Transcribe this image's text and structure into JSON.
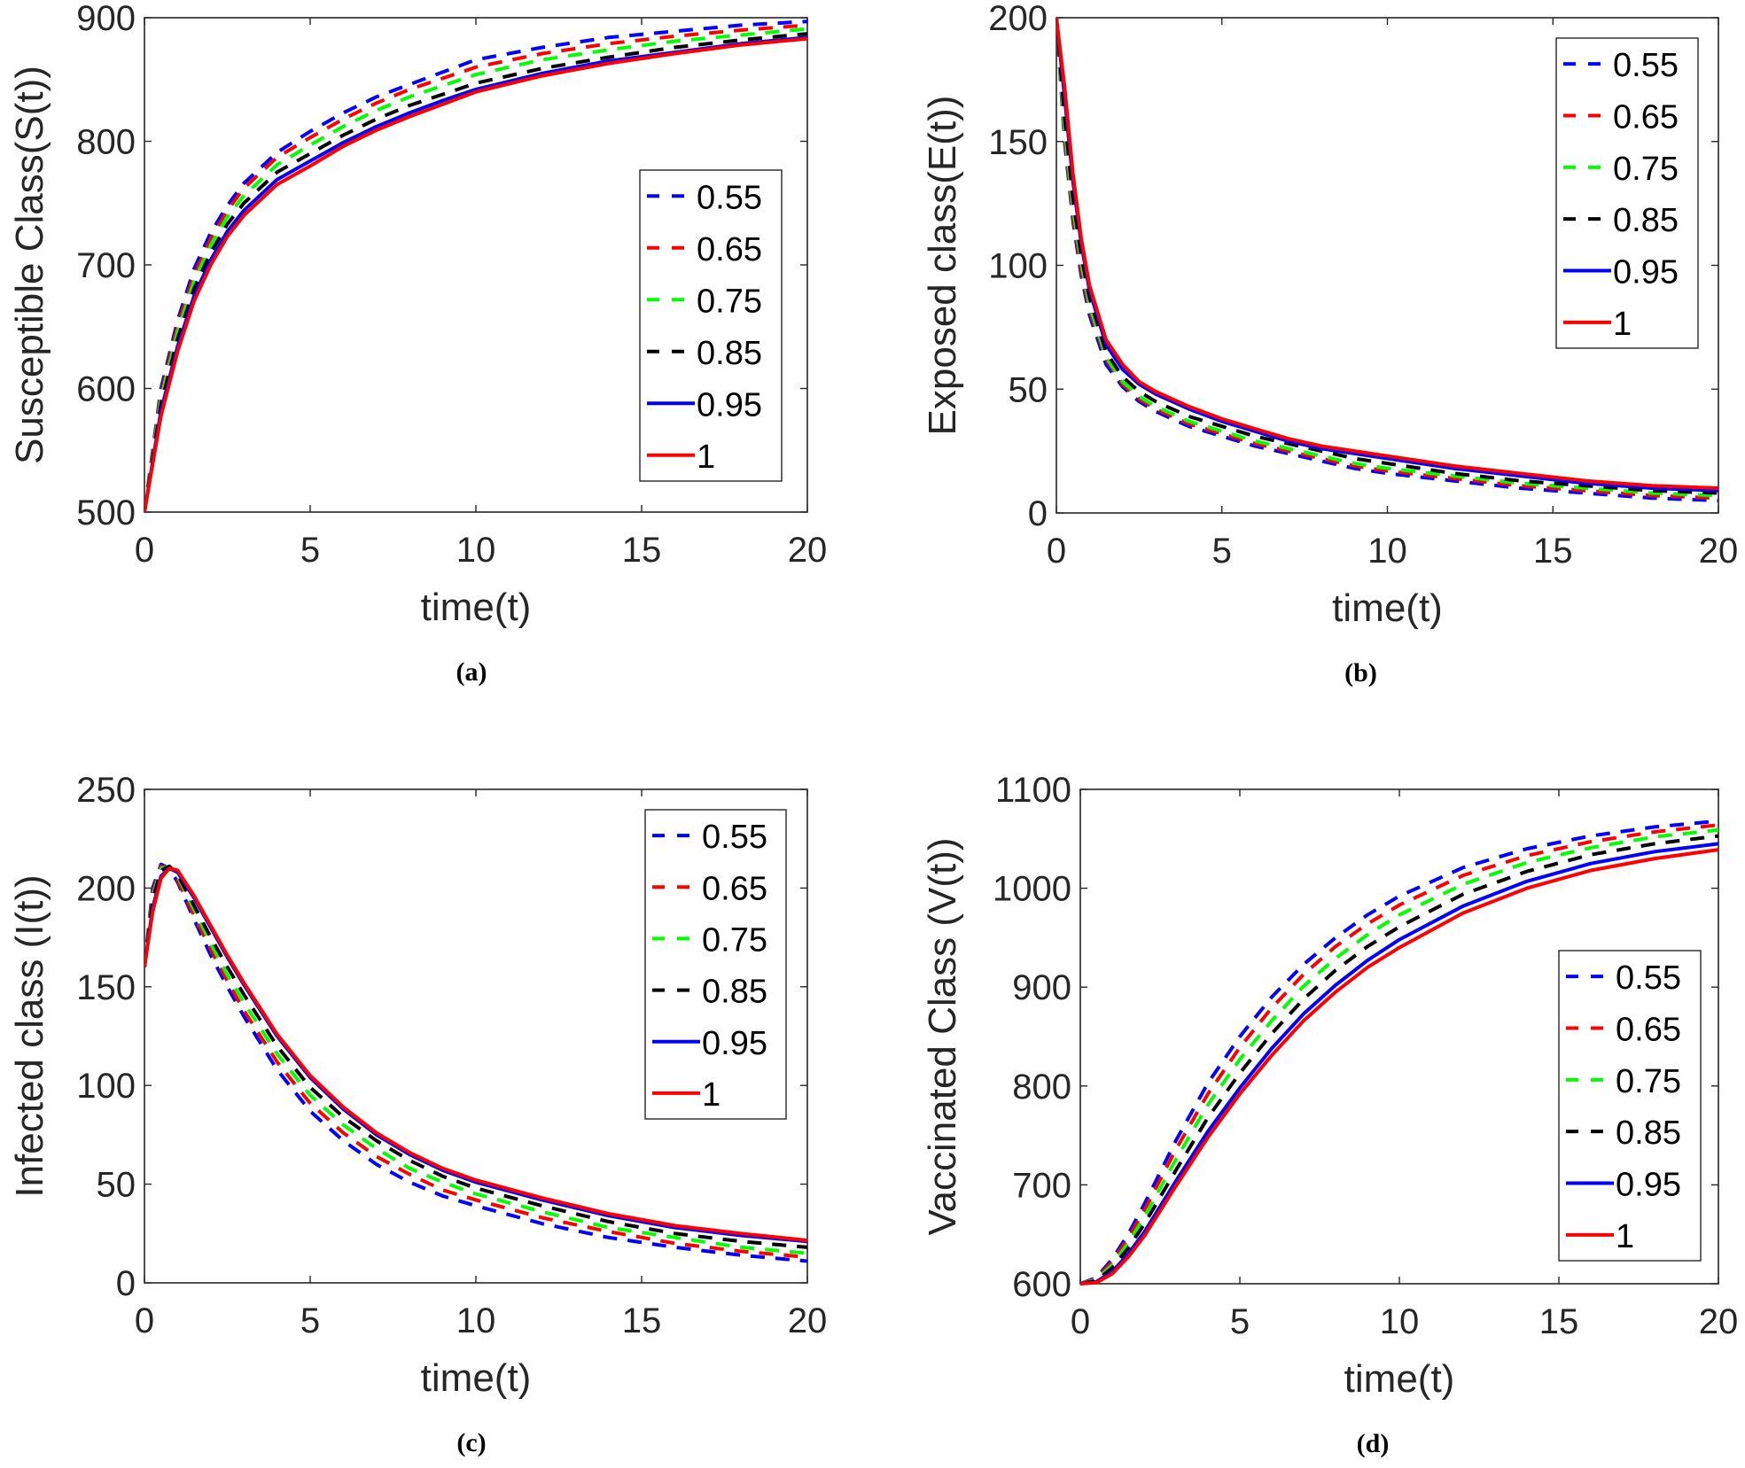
{
  "chart_data": [
    {
      "type": "line",
      "panel": "a",
      "caption": "(a)",
      "xlabel": "time(t)",
      "ylabel": "Susceptible Class(S(t))",
      "xlim": [
        0,
        20
      ],
      "ylim": [
        500,
        900
      ],
      "xticks": [
        0,
        5,
        10,
        15,
        20
      ],
      "yticks": [
        500,
        600,
        700,
        800,
        900
      ],
      "grid": false,
      "legend_position": "center-right",
      "x": [
        0,
        0.5,
        1,
        1.5,
        2,
        2.5,
        3,
        4,
        5,
        6,
        7,
        8,
        9,
        10,
        12,
        14,
        16,
        18,
        20
      ],
      "series": [
        {
          "name": "0.55",
          "color": "#0000ff",
          "dash": "dashed",
          "values": [
            500,
            600,
            655,
            697,
            726,
            748,
            766,
            791,
            808,
            823,
            836,
            846,
            856,
            866,
            876,
            884,
            889,
            894,
            897
          ]
        },
        {
          "name": "0.65",
          "color": "#ff0000",
          "dash": "dashed",
          "values": [
            500,
            596,
            651,
            692,
            721,
            744,
            762,
            787,
            803,
            818,
            831,
            842,
            851,
            860,
            871,
            879,
            885,
            890,
            894
          ]
        },
        {
          "name": "0.75",
          "color": "#00ff00",
          "dash": "dashed",
          "values": [
            500,
            592,
            646,
            687,
            716,
            739,
            756,
            781,
            797,
            812,
            825,
            836,
            845,
            854,
            866,
            874,
            881,
            886,
            891
          ]
        },
        {
          "name": "0.85",
          "color": "#000000",
          "dash": "dashed",
          "values": [
            500,
            587,
            640,
            681,
            710,
            733,
            750,
            775,
            790,
            805,
            818,
            829,
            838,
            847,
            859,
            868,
            876,
            882,
            887
          ]
        },
        {
          "name": "0.95",
          "color": "#0000ff",
          "dash": "solid",
          "values": [
            500,
            582,
            634,
            675,
            704,
            727,
            744,
            769,
            784,
            799,
            812,
            823,
            833,
            842,
            855,
            865,
            872,
            879,
            884
          ]
        },
        {
          "name": "1",
          "color": "#ff0000",
          "dash": "solid",
          "values": [
            500,
            578,
            630,
            671,
            700,
            723,
            740,
            765,
            780,
            796,
            809,
            820,
            830,
            840,
            853,
            863,
            871,
            878,
            883
          ]
        }
      ]
    },
    {
      "type": "line",
      "panel": "b",
      "caption": "(b)",
      "xlabel": "time(t)",
      "ylabel": "Exposed class(E(t))",
      "xlim": [
        0,
        20
      ],
      "ylim": [
        0,
        200
      ],
      "xticks": [
        0,
        5,
        10,
        15,
        20
      ],
      "yticks": [
        0,
        50,
        100,
        150,
        200
      ],
      "grid": false,
      "legend_position": "top-right",
      "x": [
        0,
        0.25,
        0.5,
        0.75,
        1,
        1.5,
        2,
        2.5,
        3,
        4,
        5,
        6,
        7,
        8,
        9,
        10,
        12,
        14,
        16,
        18,
        20
      ],
      "series": [
        {
          "name": "0.55",
          "color": "#0000ff",
          "dash": "dashed",
          "values": [
            200,
            150,
            118,
            96,
            80,
            60,
            51,
            45,
            41,
            35,
            31,
            27,
            24,
            21,
            18,
            16,
            13,
            10,
            8,
            6,
            5
          ]
        },
        {
          "name": "0.65",
          "color": "#ff0000",
          "dash": "dashed",
          "values": [
            200,
            152,
            120,
            98,
            82,
            62,
            52,
            46,
            42,
            36,
            32,
            28,
            25,
            22,
            19,
            17,
            14,
            11,
            9,
            7,
            6
          ]
        },
        {
          "name": "0.75",
          "color": "#00ff00",
          "dash": "dashed",
          "values": [
            200,
            155,
            123,
            101,
            84,
            63,
            53,
            47,
            43,
            37,
            33,
            29,
            26,
            23,
            20,
            18,
            15,
            12,
            10,
            8,
            7
          ]
        },
        {
          "name": "0.85",
          "color": "#000000",
          "dash": "dashed",
          "values": [
            200,
            160,
            127,
            104,
            87,
            65,
            55,
            49,
            45,
            39,
            35,
            31,
            28,
            25,
            22,
            20,
            16,
            13,
            11,
            9,
            8
          ]
        },
        {
          "name": "0.95",
          "color": "#0000ff",
          "dash": "solid",
          "values": [
            200,
            168,
            134,
            109,
            90,
            68,
            58,
            52,
            48,
            42,
            37,
            33,
            29,
            26,
            24,
            22,
            18,
            15,
            12,
            10,
            9
          ]
        },
        {
          "name": "1",
          "color": "#ff0000",
          "dash": "solid",
          "values": [
            200,
            172,
            137,
            111,
            92,
            70,
            60,
            53,
            49,
            43,
            38,
            34,
            30,
            27,
            25,
            23,
            19,
            16,
            13,
            11,
            10
          ]
        }
      ]
    },
    {
      "type": "line",
      "panel": "c",
      "caption": "(c)",
      "xlabel": "time(t)",
      "ylabel": "Infected class (I(t))",
      "xlim": [
        0,
        20
      ],
      "ylim": [
        0,
        250
      ],
      "xticks": [
        0,
        5,
        10,
        15,
        20
      ],
      "yticks": [
        0,
        50,
        100,
        150,
        200,
        250
      ],
      "grid": false,
      "legend_position": "top-right",
      "x": [
        0,
        0.25,
        0.5,
        0.75,
        1,
        1.5,
        2,
        2.5,
        3,
        4,
        5,
        6,
        7,
        8,
        9,
        10,
        12,
        14,
        16,
        18,
        20
      ],
      "series": [
        {
          "name": "0.55",
          "color": "#0000ff",
          "dash": "dashed",
          "values": [
            160,
            200,
            212,
            210,
            203,
            184,
            166,
            150,
            135,
            108,
            87,
            72,
            60,
            51,
            44,
            39,
            30,
            23,
            18,
            14,
            11
          ]
        },
        {
          "name": "0.65",
          "color": "#ff0000",
          "dash": "dashed",
          "values": [
            160,
            198,
            211,
            210,
            204,
            186,
            169,
            153,
            138,
            112,
            91,
            76,
            64,
            55,
            47,
            42,
            33,
            26,
            20,
            16,
            13
          ]
        },
        {
          "name": "0.75",
          "color": "#00ff00",
          "dash": "dashed",
          "values": [
            160,
            196,
            210,
            211,
            206,
            189,
            172,
            156,
            142,
            116,
            95,
            80,
            68,
            58,
            51,
            45,
            36,
            28,
            23,
            18,
            15
          ]
        },
        {
          "name": "0.85",
          "color": "#000000",
          "dash": "dashed",
          "values": [
            160,
            194,
            209,
            211,
            207,
            191,
            175,
            160,
            146,
            120,
            99,
            84,
            72,
            62,
            54,
            48,
            39,
            31,
            25,
            21,
            18
          ]
        },
        {
          "name": "0.95",
          "color": "#0000ff",
          "dash": "solid",
          "values": [
            160,
            190,
            206,
            210,
            208,
            195,
            180,
            165,
            151,
            125,
            104,
            88,
            75,
            65,
            57,
            51,
            42,
            34,
            28,
            24,
            21
          ]
        },
        {
          "name": "1",
          "color": "#ff0000",
          "dash": "solid",
          "values": [
            160,
            188,
            205,
            210,
            209,
            196,
            181,
            166,
            152,
            126,
            105,
            89,
            76,
            66,
            58,
            52,
            43,
            35,
            29,
            25,
            21.5
          ]
        }
      ]
    },
    {
      "type": "line",
      "panel": "d",
      "caption": "(d)",
      "xlabel": "time(t)",
      "ylabel": "Vaccinated Class (V(t))",
      "xlim": [
        0,
        20
      ],
      "ylim": [
        600,
        1100
      ],
      "xticks": [
        0,
        5,
        10,
        15,
        20
      ],
      "yticks": [
        600,
        700,
        800,
        900,
        1000,
        1100
      ],
      "grid": false,
      "legend_position": "bottom-right",
      "x": [
        0,
        0.5,
        1,
        1.5,
        2,
        3,
        4,
        5,
        6,
        7,
        8,
        9,
        10,
        12,
        14,
        16,
        18,
        20
      ],
      "series": [
        {
          "name": "0.55",
          "color": "#0000ff",
          "dash": "dashed",
          "values": [
            600,
            606,
            625,
            650,
            680,
            745,
            803,
            850,
            890,
            923,
            950,
            973,
            992,
            1021,
            1040,
            1053,
            1062,
            1068
          ]
        },
        {
          "name": "0.65",
          "color": "#ff0000",
          "dash": "dashed",
          "values": [
            600,
            605,
            622,
            646,
            674,
            736,
            792,
            839,
            879,
            913,
            941,
            964,
            983,
            1013,
            1033,
            1047,
            1057,
            1064
          ]
        },
        {
          "name": "0.75",
          "color": "#00ff00",
          "dash": "dashed",
          "values": [
            600,
            604,
            619,
            641,
            667,
            726,
            781,
            827,
            866,
            901,
            929,
            953,
            973,
            1004,
            1026,
            1041,
            1052,
            1059
          ]
        },
        {
          "name": "0.85",
          "color": "#000000",
          "dash": "dashed",
          "values": [
            600,
            603,
            616,
            636,
            660,
            715,
            768,
            813,
            853,
            888,
            917,
            941,
            961,
            994,
            1017,
            1034,
            1045,
            1053
          ]
        },
        {
          "name": "0.95",
          "color": "#0000ff",
          "dash": "solid",
          "values": [
            600,
            602,
            612,
            630,
            652,
            704,
            754,
            798,
            838,
            873,
            902,
            927,
            948,
            982,
            1007,
            1025,
            1037,
            1045
          ]
        },
        {
          "name": "1",
          "color": "#ff0000",
          "dash": "solid",
          "values": [
            600,
            601,
            610,
            627,
            648,
            699,
            748,
            792,
            831,
            866,
            895,
            920,
            940,
            975,
            1000,
            1018,
            1030,
            1039
          ]
        }
      ]
    }
  ]
}
